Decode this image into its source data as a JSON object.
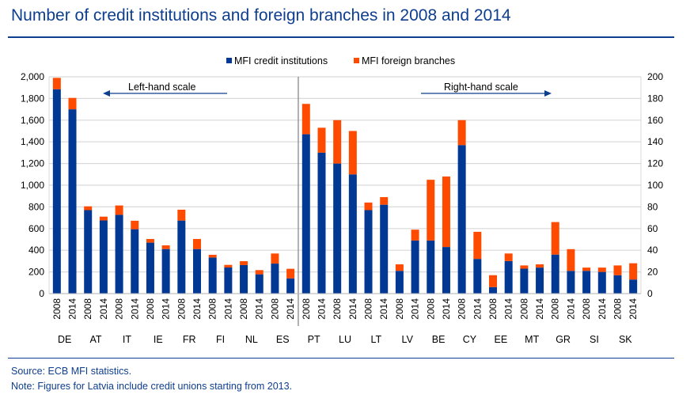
{
  "title": "Number of credit institutions and foreign branches in 2008 and 2014",
  "footer": {
    "source": "Source: ECB MFI statistics.",
    "note": "Note: Figures for Latvia include credit unions starting from 2013."
  },
  "colors": {
    "blue": "#003894",
    "orange": "#ff4b00",
    "title": "#0e3e8e"
  },
  "chart_data": {
    "type": "bar",
    "stacked": true,
    "title": "Number of credit institutions and foreign branches in 2008 and 2014",
    "legend": {
      "position": "top",
      "entries": [
        "MFI credit institutions",
        "MFI foreign branches"
      ]
    },
    "annotations": {
      "left": "Left-hand scale",
      "right": "Right-hand scale"
    },
    "left_axis": {
      "ylim": [
        0,
        2000
      ],
      "ticks": [
        "0",
        "200",
        "400",
        "600",
        "800",
        "1,000",
        "1,200",
        "1,400",
        "1,600",
        "1,800",
        "2,000"
      ]
    },
    "right_axis": {
      "ylim": [
        0,
        200
      ],
      "ticks": [
        "0",
        "20",
        "40",
        "60",
        "80",
        "100",
        "120",
        "140",
        "160",
        "180",
        "200"
      ]
    },
    "grid": true,
    "years": [
      "2008",
      "2014"
    ],
    "countries": [
      {
        "name": "DE",
        "axis": "left",
        "ci": [
          1885,
          1700
        ],
        "fb": [
          105,
          105
        ]
      },
      {
        "name": "AT",
        "axis": "left",
        "ci": [
          770,
          675
        ],
        "fb": [
          35,
          35
        ]
      },
      {
        "name": "IT",
        "axis": "left",
        "ci": [
          727,
          594
        ],
        "fb": [
          86,
          78
        ]
      },
      {
        "name": "IE",
        "axis": "left",
        "ci": [
          470,
          411
        ],
        "fb": [
          34,
          34
        ]
      },
      {
        "name": "FR",
        "axis": "left",
        "ci": [
          674,
          411
        ],
        "fb": [
          100,
          93
        ]
      },
      {
        "name": "FI",
        "axis": "left",
        "ci": [
          333,
          241
        ],
        "fb": [
          25,
          24
        ]
      },
      {
        "name": "NL",
        "axis": "left",
        "ci": [
          263,
          178
        ],
        "fb": [
          36,
          39
        ]
      },
      {
        "name": "ES",
        "axis": "left",
        "ci": [
          277,
          141
        ],
        "fb": [
          93,
          88
        ]
      },
      {
        "name": "PT",
        "axis": "right",
        "ci": [
          147,
          130
        ],
        "fb": [
          28,
          23
        ]
      },
      {
        "name": "LU",
        "axis": "right",
        "ci": [
          120,
          110
        ],
        "fb": [
          40,
          40
        ]
      },
      {
        "name": "LT",
        "axis": "right",
        "ci": [
          77,
          82
        ],
        "fb": [
          7,
          7
        ]
      },
      {
        "name": "LV",
        "axis": "right",
        "ci": [
          21,
          49
        ],
        "fb": [
          6,
          10
        ]
      },
      {
        "name": "BE",
        "axis": "right",
        "ci": [
          49,
          43
        ],
        "fb": [
          56,
          65
        ]
      },
      {
        "name": "CY",
        "axis": "right",
        "ci": [
          137,
          32
        ],
        "fb": [
          23,
          25
        ]
      },
      {
        "name": "EE",
        "axis": "right",
        "ci": [
          6,
          30
        ],
        "fb": [
          11,
          7
        ]
      },
      {
        "name": "MT",
        "axis": "right",
        "ci": [
          23,
          24
        ],
        "fb": [
          3,
          3
        ]
      },
      {
        "name": "GR",
        "axis": "right",
        "ci": [
          36,
          21
        ],
        "fb": [
          30,
          20
        ]
      },
      {
        "name": "SI",
        "axis": "right",
        "ci": [
          21,
          20
        ],
        "fb": [
          3,
          4
        ]
      },
      {
        "name": "SK",
        "axis": "right",
        "ci": [
          17,
          13
        ],
        "fb": [
          9,
          15
        ]
      }
    ]
  }
}
